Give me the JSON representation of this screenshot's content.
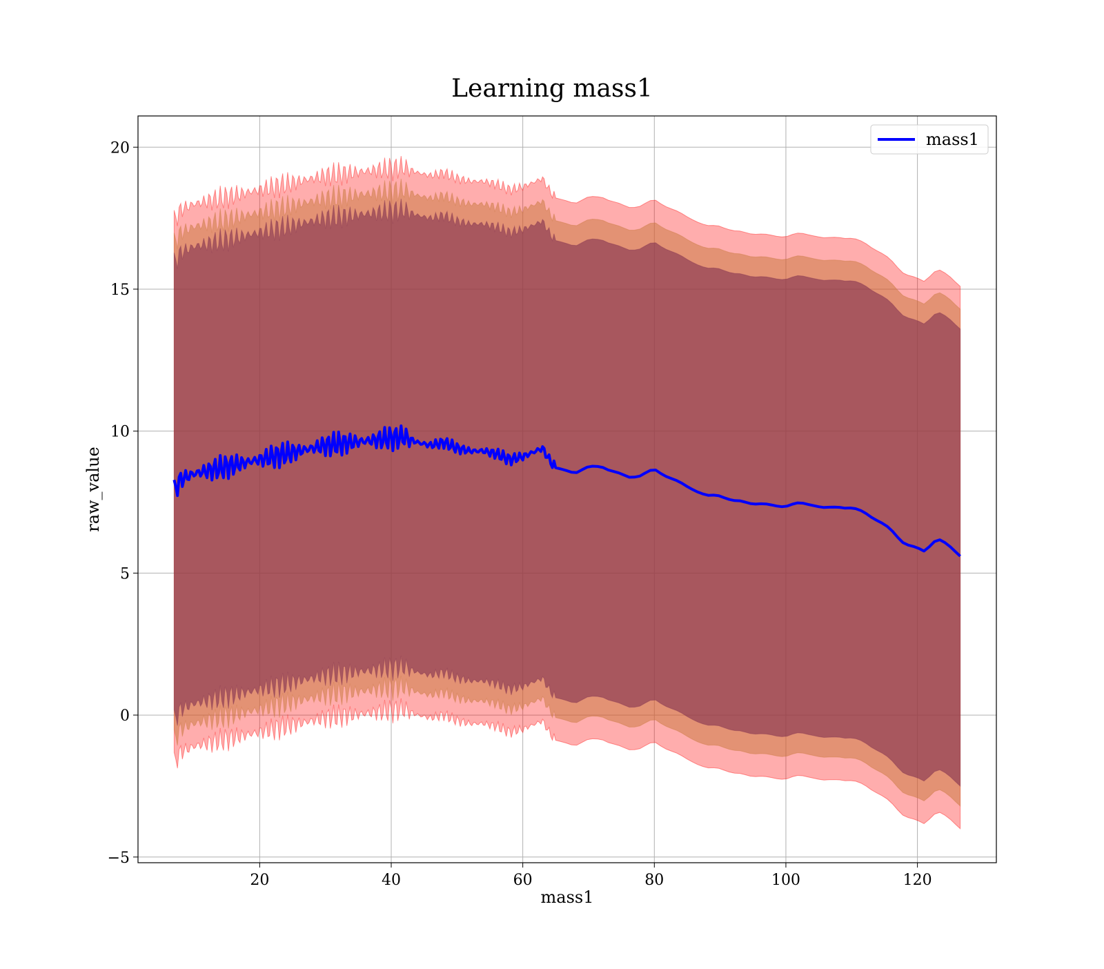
{
  "chart_data": {
    "type": "line",
    "title": "Learning mass1",
    "xlabel": "mass1",
    "ylabel": "raw_value",
    "xlim": [
      1.5,
      132
    ],
    "ylim": [
      -5.2,
      21.1
    ],
    "xticks": [
      20,
      40,
      60,
      80,
      100,
      120
    ],
    "yticks": [
      -5,
      0,
      5,
      10,
      15,
      20
    ],
    "xtick_labels": [
      "20",
      "40",
      "60",
      "80",
      "100",
      "120"
    ],
    "ytick_labels": [
      "−5",
      "0",
      "5",
      "10",
      "15",
      "20"
    ],
    "grid": true,
    "legend_position": "top-right",
    "series": [
      {
        "name": "mass1",
        "color": "#0000ff",
        "x": [
          7,
          8,
          10,
          12,
          14,
          16,
          18,
          20,
          22,
          24,
          26,
          28,
          30,
          32,
          34,
          36,
          38,
          40,
          42,
          44,
          46,
          48,
          50,
          52,
          54,
          56,
          58,
          60,
          62,
          63,
          64,
          65,
          66,
          68,
          70,
          72,
          74,
          76,
          78,
          80,
          82,
          84,
          86,
          88,
          90,
          92,
          94,
          96,
          98,
          100,
          102,
          104,
          106,
          108,
          110,
          112,
          114,
          116,
          118,
          120,
          121,
          123,
          126.5
        ],
        "y": [
          7.9,
          8.3,
          8.5,
          8.6,
          8.7,
          8.8,
          8.9,
          9.0,
          9.1,
          9.2,
          9.3,
          9.4,
          9.5,
          9.55,
          9.6,
          9.65,
          9.7,
          9.75,
          9.8,
          9.6,
          9.5,
          9.6,
          9.4,
          9.3,
          9.3,
          9.2,
          9.0,
          9.1,
          9.3,
          9.4,
          9.0,
          8.7,
          8.6,
          8.5,
          8.7,
          8.8,
          8.6,
          8.4,
          8.4,
          8.6,
          8.4,
          8.2,
          8.0,
          7.7,
          7.7,
          7.5,
          7.5,
          7.5,
          7.4,
          7.35,
          7.4,
          7.4,
          7.3,
          7.4,
          7.3,
          7.1,
          6.8,
          6.5,
          6.1,
          5.9,
          5.8,
          6.2,
          5.6
        ]
      }
    ],
    "bands": [
      {
        "color": "#ff0000",
        "opacity": 0.32,
        "upper_offset": 9.5,
        "lower_offset": 9.6
      },
      {
        "color": "#c8783c",
        "opacity": 0.5,
        "upper_offset": 8.7,
        "lower_offset": 8.8
      },
      {
        "color": "#803050",
        "opacity": 0.6,
        "upper_offset": 8.0,
        "lower_offset": 8.1
      }
    ]
  }
}
